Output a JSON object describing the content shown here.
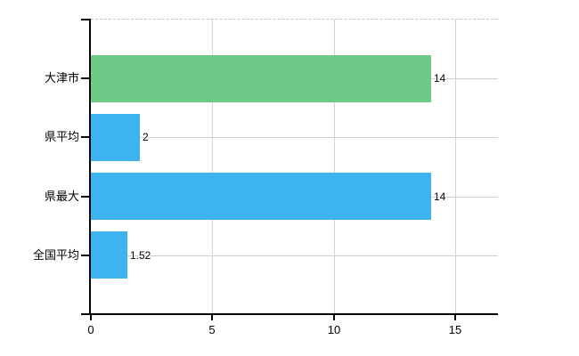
{
  "chart_data": {
    "type": "bar",
    "orientation": "horizontal",
    "categories": [
      "大津市",
      "県平均",
      "県最大",
      "全国平均"
    ],
    "values": [
      14,
      2,
      14,
      1.52
    ],
    "value_labels": [
      "14",
      "2",
      "14",
      "1.52"
    ],
    "x_tick_labels": [
      "0",
      "5",
      "10",
      "15"
    ],
    "x_tick_values": [
      0,
      5,
      10,
      15
    ],
    "xlim": [
      0,
      16.74
    ],
    "grid": true,
    "legend_shown": false,
    "colors": {
      "bars": [
        "#6eca87",
        "#3db3f0",
        "#3db3f0",
        "#3db3f0"
      ],
      "grid_vertical": "#d4d4ce",
      "grid_horizontal": "#d2d2ca",
      "plot_top_border": "#c6c6c6",
      "axis": "#000000",
      "text": "#000000",
      "background": "#ffffff"
    }
  }
}
